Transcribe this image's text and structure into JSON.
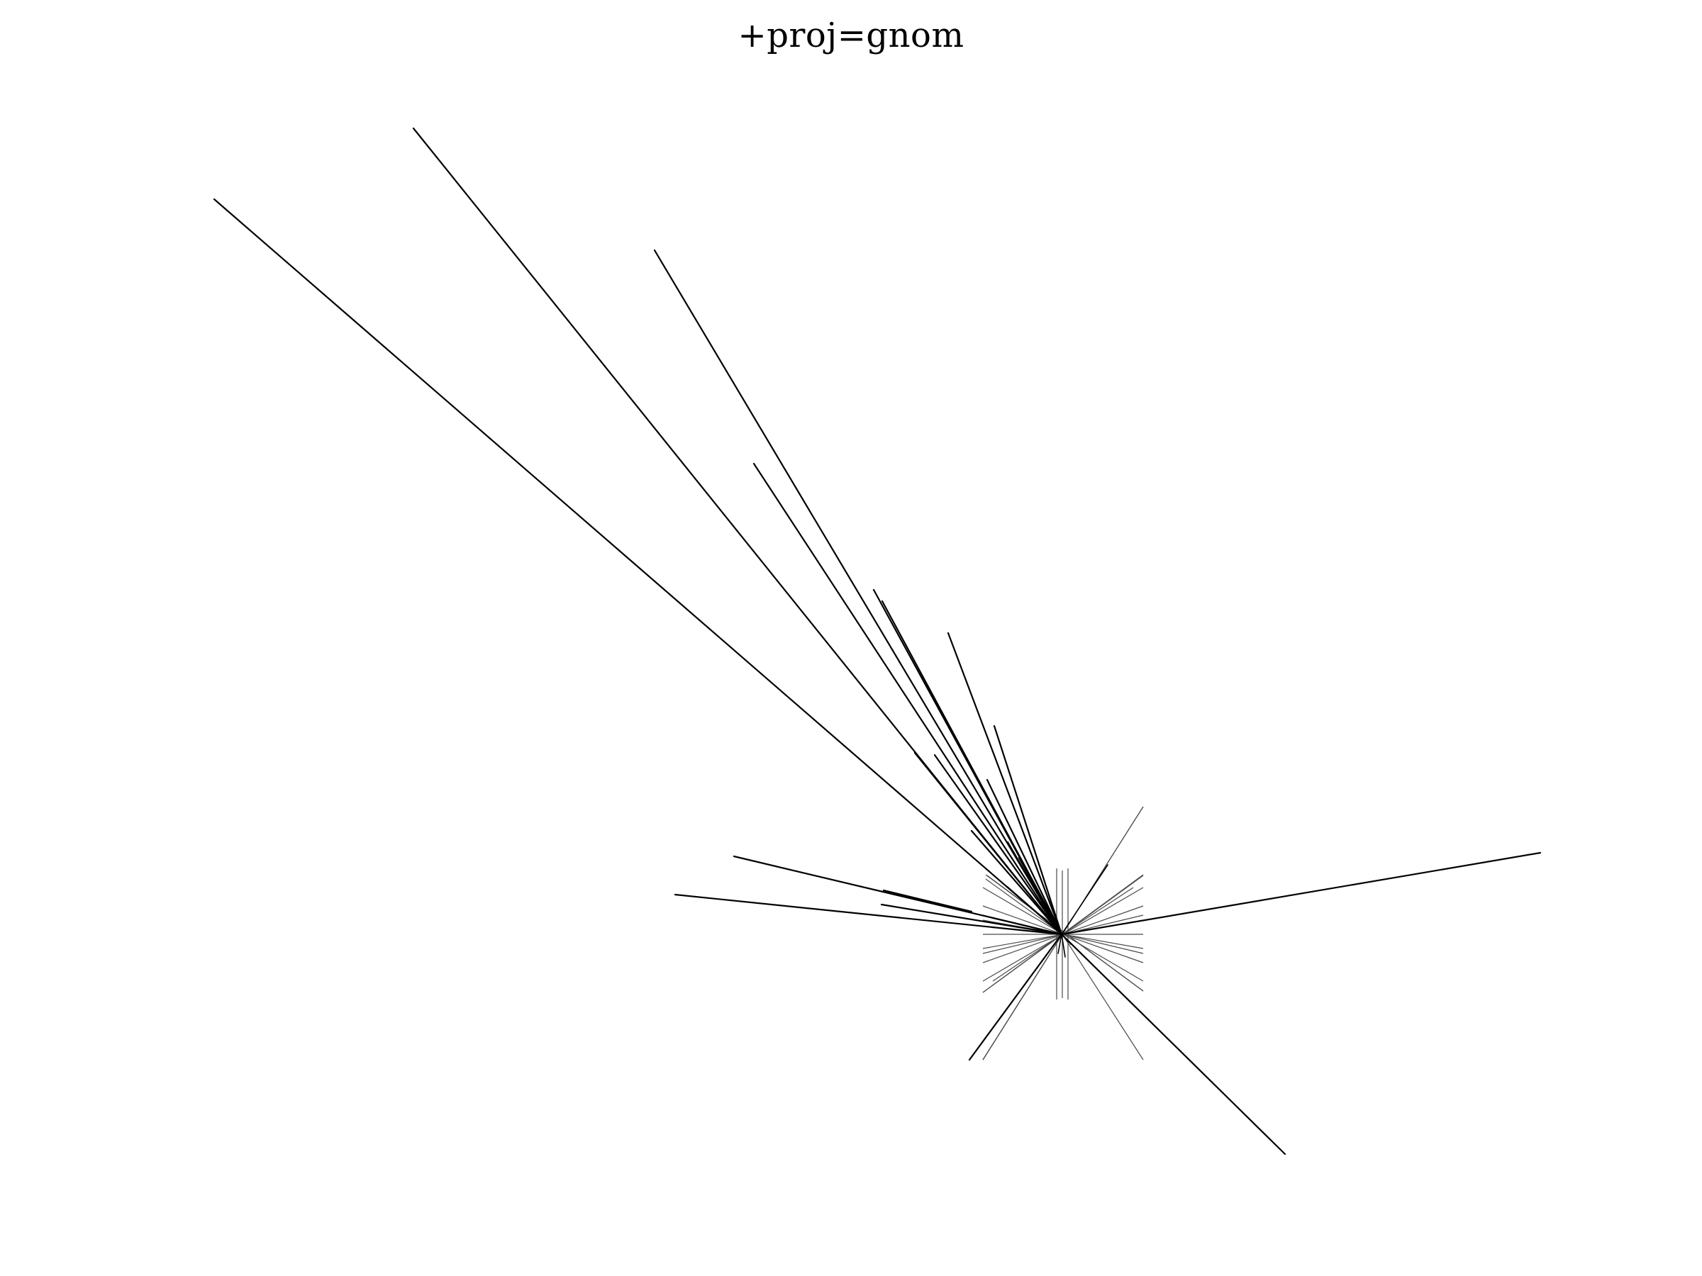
{
  "map": {
    "title": "+proj=gnom",
    "projection": "gnomonic",
    "colors": {
      "background": "#ffffff",
      "coastline": "#000000",
      "graticule": "#4a4a4a"
    }
  }
}
